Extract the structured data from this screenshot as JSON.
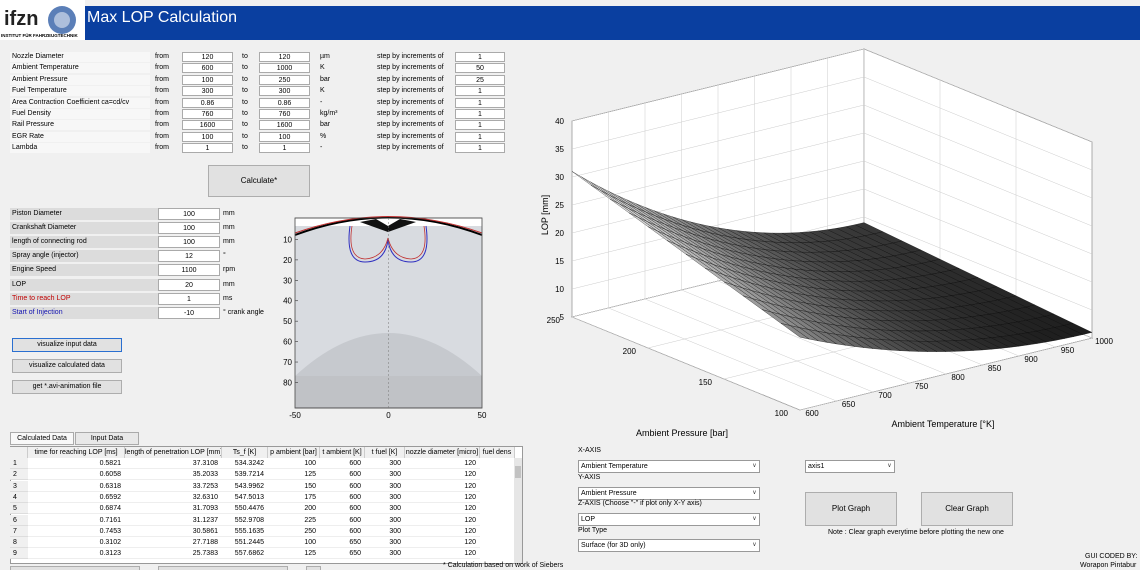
{
  "header": {
    "logo": "ifzn",
    "logo_subtitle": "INSTITUT FÜR FAHRZEUGTECHNIK",
    "title": "Max LOP Calculation"
  },
  "parameters": {
    "from_label": "from",
    "to_label": "to",
    "step_label": "step by increments of",
    "rows": [
      {
        "label": "Nozzle Diameter",
        "from": "120",
        "to": "120",
        "unit": "µm",
        "step": "1"
      },
      {
        "label": "Ambient Temperature",
        "from": "600",
        "to": "1000",
        "unit": "K",
        "step": "50"
      },
      {
        "label": "Ambient Pressure",
        "from": "100",
        "to": "250",
        "unit": "bar",
        "step": "25"
      },
      {
        "label": "Fuel Temperature",
        "from": "300",
        "to": "300",
        "unit": "K",
        "step": "1"
      },
      {
        "label": "Area Contraction Coefficient ca=cd/cv",
        "from": "0.86",
        "to": "0.86",
        "unit": "-",
        "step": "1"
      },
      {
        "label": "Fuel Density",
        "from": "760",
        "to": "760",
        "unit": "kg/m³",
        "step": "1"
      },
      {
        "label": "Rail Pressure",
        "from": "1600",
        "to": "1600",
        "unit": "bar",
        "step": "1"
      },
      {
        "label": "EGR Rate",
        "from": "100",
        "to": "100",
        "unit": "%",
        "step": "1"
      },
      {
        "label": "Lambda",
        "from": "1",
        "to": "1",
        "unit": "-",
        "step": "1"
      }
    ]
  },
  "calculate_button": "Calculate*",
  "engine": {
    "rows": [
      {
        "label": "Piston Diameter",
        "value": "100",
        "unit": "mm"
      },
      {
        "label": "Crankshaft Diameter",
        "value": "100",
        "unit": "mm"
      },
      {
        "label": "length of connecting rod",
        "value": "100",
        "unit": "mm"
      },
      {
        "label": "Spray angle (injector)",
        "value": "12",
        "unit": "°"
      },
      {
        "label": "Engine Speed",
        "value": "1100",
        "unit": "rpm"
      },
      {
        "label": "LOP",
        "value": "20",
        "unit": "mm"
      },
      {
        "label": "Time to reach LOP",
        "value": "1",
        "unit": "ms",
        "color": "#c00000"
      },
      {
        "label": "Start of Injection",
        "value": "-10",
        "unit": "° crank angle",
        "color": "#1010b0"
      }
    ]
  },
  "buttons": [
    "visualize input data",
    "visualize calculated data",
    "get *.avi-animation file"
  ],
  "small_plot": {
    "xlim": [
      -50,
      50
    ],
    "xticks": [
      -50,
      0,
      50
    ],
    "ylim": [
      -0.5,
      92.5
    ],
    "yticks": [
      10,
      20,
      30,
      40,
      50,
      60,
      70,
      80
    ]
  },
  "plot3d": {
    "zlabel": "LOP [mm]",
    "xlabel": "Ambient Temperature [°K]",
    "ylabel": "Ambient Pressure [bar]",
    "xlim": [
      600,
      1000
    ],
    "xticks": [
      600,
      650,
      700,
      750,
      800,
      850,
      900,
      950,
      1000
    ],
    "ylim": [
      100,
      250
    ],
    "yticks": [
      100,
      150,
      200,
      250
    ],
    "zlim": [
      5,
      40
    ],
    "zticks": [
      5,
      10,
      15,
      20,
      25,
      30,
      35,
      40
    ]
  },
  "tabs": [
    "Calculated Data",
    "Input Data"
  ],
  "table": {
    "headers": [
      "time for reaching LOP [ms]",
      "length of penetration LOP [mm]",
      "Ts_f [K]",
      "p ambient [bar]",
      "t ambient [K]",
      "t fuel [K]",
      "nozzle diameter [micro]",
      "fuel dens"
    ],
    "row_numbers": [
      "1",
      "2",
      "3",
      "4",
      "5",
      "6",
      "7",
      "8",
      "9"
    ],
    "rows": [
      [
        "0.5821",
        "37.3108",
        "534.3242",
        "100",
        "600",
        "300",
        "120"
      ],
      [
        "0.6058",
        "35.2033",
        "539.7214",
        "125",
        "600",
        "300",
        "120"
      ],
      [
        "0.6318",
        "33.7253",
        "543.9962",
        "150",
        "600",
        "300",
        "120"
      ],
      [
        "0.6592",
        "32.6310",
        "547.5013",
        "175",
        "600",
        "300",
        "120"
      ],
      [
        "0.6874",
        "31.7093",
        "550.4476",
        "200",
        "600",
        "300",
        "120"
      ],
      [
        "0.7161",
        "31.1237",
        "552.9708",
        "225",
        "600",
        "300",
        "120"
      ],
      [
        "0.7453",
        "30.5861",
        "555.1635",
        "250",
        "600",
        "300",
        "120"
      ],
      [
        "0.3102",
        "27.7188",
        "551.2445",
        "100",
        "650",
        "300",
        "120"
      ],
      [
        "0.3123",
        "25.7383",
        "557.6862",
        "125",
        "650",
        "300",
        "120"
      ]
    ]
  },
  "controls": {
    "x_axis_label": "X-AXIS",
    "x_axis_value": "Ambient Temperature",
    "y_axis_label": "Y-AXIS",
    "y_axis_value": "Ambient Pressure",
    "z_axis_label": "Z-AXIS  (Choose \"-\" if plot only X-Y axis)",
    "z_axis_value": "LOP",
    "plot_type_label": "Plot Type",
    "plot_type_value": "Surface (for 3D only)",
    "axes_value": "axis1",
    "plot_button": "Plot Graph",
    "clear_button": "Clear Graph",
    "note": "Note : Clear graph everytime before plotting the new one"
  },
  "footnote": "* Calculation based on work of Siebers",
  "credit": {
    "line1": "GUI CODED BY:",
    "line2": "Worapon Pintabur"
  }
}
